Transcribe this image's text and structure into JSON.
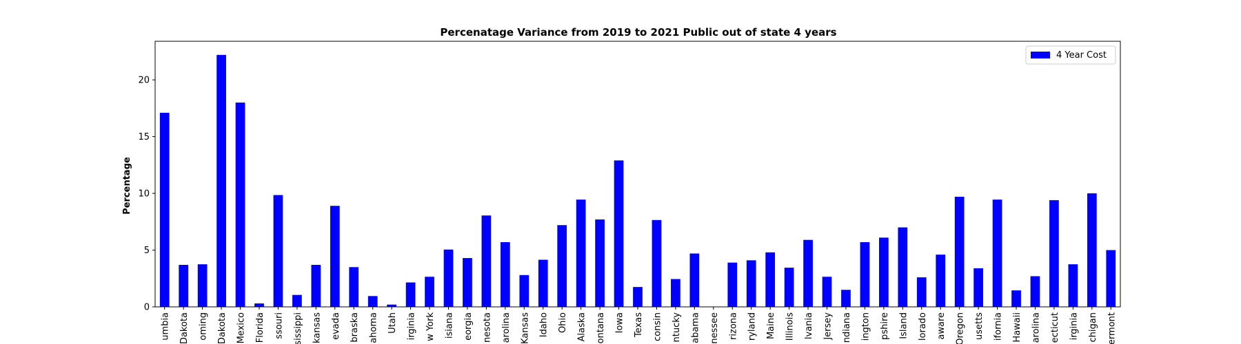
{
  "chart_data": {
    "type": "bar",
    "title": "Percenatage Variance from 2019 to 2021 Public out of state 4 years",
    "xlabel": "",
    "ylabel": "Percentage",
    "ylim": [
      0,
      23.4
    ],
    "yticks": [
      0,
      5,
      10,
      15,
      20
    ],
    "grid": false,
    "legend_position": "top-right",
    "bar_color": "#0000ff",
    "series": [
      {
        "name": "4 Year Cost",
        "values": [
          17.1,
          3.7,
          3.75,
          22.2,
          18.0,
          0.3,
          9.85,
          1.05,
          3.7,
          8.9,
          3.5,
          0.95,
          0.2,
          2.15,
          2.65,
          5.05,
          4.3,
          8.05,
          5.7,
          2.8,
          4.15,
          7.2,
          9.45,
          7.7,
          12.9,
          1.75,
          7.65,
          2.45,
          4.7,
          0.0,
          3.9,
          4.1,
          4.8,
          3.45,
          5.9,
          2.65,
          1.5,
          5.7,
          6.1,
          7.0,
          2.6,
          4.6,
          9.7,
          3.4,
          9.45,
          1.45,
          2.7,
          9.4,
          3.75,
          10.0,
          5.0
        ]
      }
    ],
    "categories": [
      "umbia",
      "Dakota",
      "oming",
      "Dakota",
      "Mexico",
      "Florida",
      "ssouri",
      "ississippi",
      "kansas",
      "evada",
      "braska",
      "ahoma",
      "Utah",
      "irginia",
      "w York",
      "isiana",
      "eorgia",
      "nesota",
      "arolina",
      "Kansas",
      "Idaho",
      "Ohio",
      "Alaska",
      "ontana",
      "Iowa",
      "Texas",
      "consin",
      "ntucky",
      "abama",
      "nessee",
      "rizona",
      "ryland",
      "Maine",
      "Illinois",
      "lvania",
      "Jersey",
      "ndiana",
      "ington",
      "pshire",
      "Island",
      "lorado",
      "aware",
      "Oregon",
      "usetts",
      "ifornia",
      "Hawaii",
      "arolina",
      "ecticut",
      "irginia",
      "chigan",
      "ermont"
    ]
  }
}
